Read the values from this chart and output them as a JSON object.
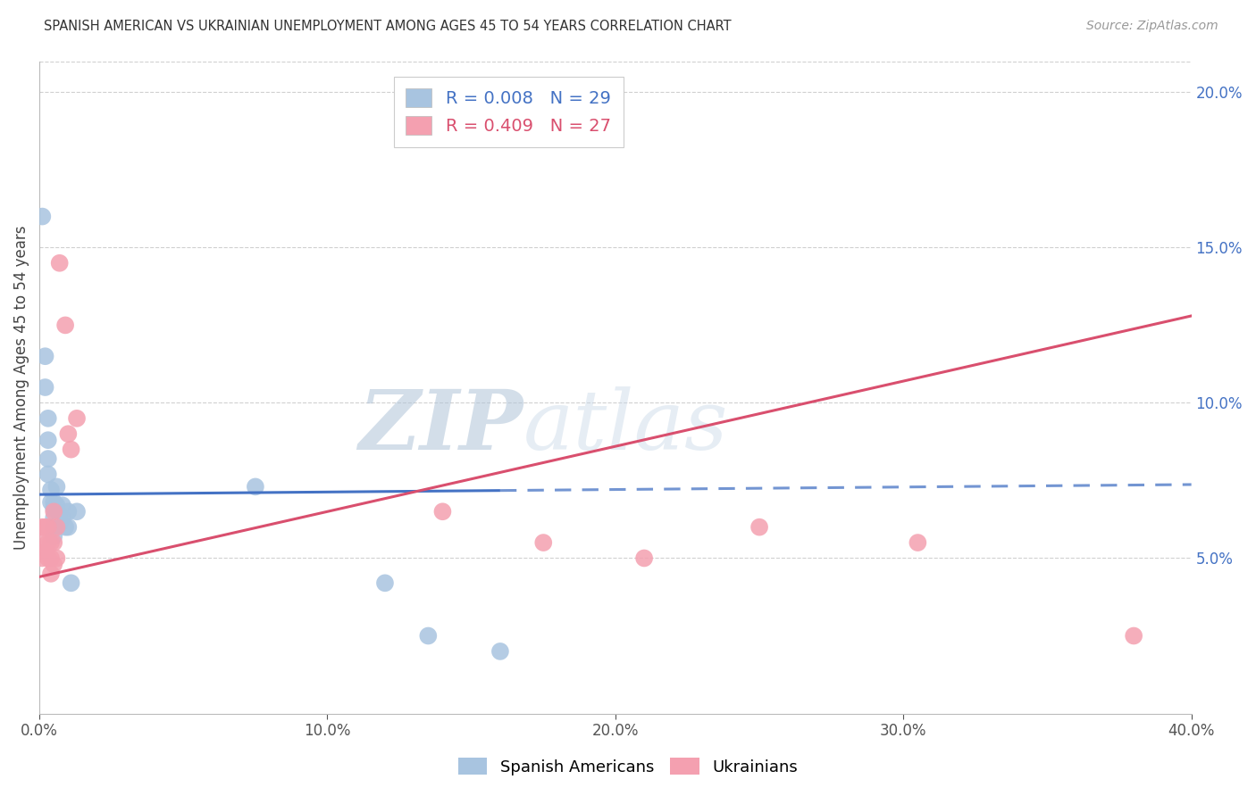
{
  "title": "SPANISH AMERICAN VS UKRAINIAN UNEMPLOYMENT AMONG AGES 45 TO 54 YEARS CORRELATION CHART",
  "source": "Source: ZipAtlas.com",
  "ylabel": "Unemployment Among Ages 45 to 54 years",
  "xlim": [
    0.0,
    0.4
  ],
  "ylim": [
    0.0,
    0.21
  ],
  "xticks": [
    0.0,
    0.1,
    0.2,
    0.3,
    0.4
  ],
  "xticklabels": [
    "0.0%",
    "10.0%",
    "20.0%",
    "30.0%",
    "40.0%"
  ],
  "yticks_right": [
    0.05,
    0.1,
    0.15,
    0.2
  ],
  "yticklabels_right": [
    "5.0%",
    "10.0%",
    "15.0%",
    "20.0%"
  ],
  "legend_r_blue": "R = 0.008",
  "legend_n_blue": "N = 29",
  "legend_r_pink": "R = 0.409",
  "legend_n_pink": "N = 27",
  "color_blue": "#a8c4e0",
  "color_pink": "#f4a0b0",
  "color_blue_line": "#4472c4",
  "color_pink_line": "#d94f6e",
  "color_right_axis": "#4472c4",
  "watermark_zip": "ZIP",
  "watermark_atlas": "atlas",
  "spanish_x": [
    0.001,
    0.002,
    0.002,
    0.003,
    0.003,
    0.003,
    0.003,
    0.004,
    0.004,
    0.005,
    0.005,
    0.005,
    0.005,
    0.005,
    0.006,
    0.006,
    0.007,
    0.007,
    0.008,
    0.008,
    0.009,
    0.01,
    0.01,
    0.011,
    0.013,
    0.075,
    0.12,
    0.135,
    0.16
  ],
  "spanish_y": [
    0.16,
    0.115,
    0.105,
    0.095,
    0.088,
    0.082,
    0.077,
    0.072,
    0.068,
    0.068,
    0.066,
    0.063,
    0.06,
    0.057,
    0.073,
    0.067,
    0.064,
    0.061,
    0.067,
    0.063,
    0.06,
    0.065,
    0.06,
    0.042,
    0.065,
    0.073,
    0.042,
    0.025,
    0.02
  ],
  "ukr_x": [
    0.001,
    0.001,
    0.001,
    0.002,
    0.002,
    0.003,
    0.003,
    0.003,
    0.004,
    0.004,
    0.004,
    0.005,
    0.005,
    0.005,
    0.006,
    0.006,
    0.007,
    0.009,
    0.01,
    0.011,
    0.013,
    0.14,
    0.175,
    0.21,
    0.25,
    0.305,
    0.38
  ],
  "ukr_y": [
    0.06,
    0.055,
    0.05,
    0.06,
    0.052,
    0.06,
    0.055,
    0.05,
    0.055,
    0.05,
    0.045,
    0.065,
    0.055,
    0.048,
    0.06,
    0.05,
    0.145,
    0.125,
    0.09,
    0.085,
    0.095,
    0.065,
    0.055,
    0.05,
    0.06,
    0.055,
    0.025
  ],
  "background_color": "#ffffff",
  "grid_color": "#d0d0d0",
  "blue_line_intercept": 0.0705,
  "blue_line_slope": 0.008,
  "pink_line_x0": 0.0,
  "pink_line_y0": 0.044,
  "pink_line_x1": 0.4,
  "pink_line_y1": 0.128
}
